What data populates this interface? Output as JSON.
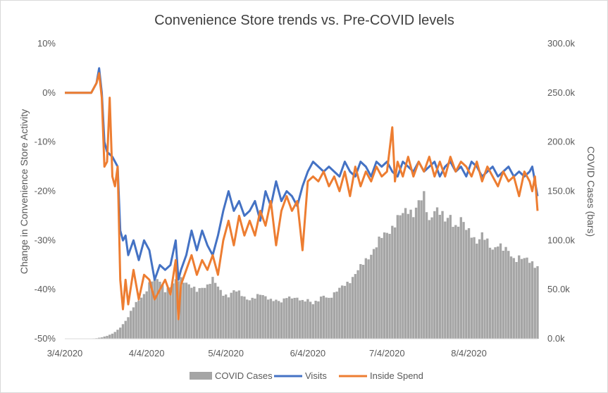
{
  "chart_data": {
    "type": "bar+line",
    "title": "Convenience  Store trends vs. Pre-COVID levels",
    "ylabel_left": "Change in Convenience Store Activity",
    "ylabel_right": "COVID Cases (bars)",
    "left_axis": {
      "ticks": [
        10,
        0,
        -10,
        -20,
        -30,
        -40,
        -50
      ],
      "tick_labels": [
        "10%",
        "0%",
        "-10%",
        "-20%",
        "-30%",
        "-40%",
        "-50%"
      ],
      "ylim": [
        -50,
        10
      ]
    },
    "right_axis": {
      "ticks": [
        300000,
        250000,
        200000,
        150000,
        100000,
        50000,
        0
      ],
      "tick_labels": [
        "300.0k",
        "250.0k",
        "200.0k",
        "150.0k",
        "100.0k",
        "50.0k",
        "0.0k"
      ],
      "ylim": [
        0,
        300000
      ]
    },
    "x_axis": {
      "start_date": "3/4/2020",
      "end_date": "8/31/2020",
      "tick_labels": [
        "3/4/2020",
        "4/4/2020",
        "5/4/2020",
        "6/4/2020",
        "7/4/2020",
        "8/4/2020"
      ]
    },
    "legend": {
      "position": "bottom",
      "entries": [
        "COVID Cases",
        "Visits",
        "Inside Spend"
      ]
    },
    "colors": {
      "cases": "#a5a5a5",
      "visits": "#4472c4",
      "spend": "#ed7d31",
      "axis": "#d9d9d9"
    },
    "series": [
      {
        "name": "COVID Cases",
        "kind": "bar",
        "axis": "right",
        "points": [
          [
            0,
            0
          ],
          [
            10,
            200
          ],
          [
            12,
            600
          ],
          [
            14,
            1500
          ],
          [
            16,
            3000
          ],
          [
            18,
            5000
          ],
          [
            20,
            9000
          ],
          [
            22,
            15000
          ],
          [
            24,
            22000
          ],
          [
            26,
            32000
          ],
          [
            28,
            40000
          ],
          [
            30,
            46000
          ],
          [
            31,
            50000
          ],
          [
            32,
            55000
          ],
          [
            33,
            58000
          ],
          [
            34,
            60000
          ],
          [
            36,
            60000
          ],
          [
            38,
            50000
          ],
          [
            40,
            52000
          ],
          [
            42,
            58000
          ],
          [
            44,
            62000
          ],
          [
            46,
            58000
          ],
          [
            48,
            52000
          ],
          [
            50,
            48000
          ],
          [
            52,
            53000
          ],
          [
            54,
            55000
          ],
          [
            56,
            60000
          ],
          [
            58,
            52000
          ],
          [
            60,
            46000
          ],
          [
            62,
            44000
          ],
          [
            64,
            48000
          ],
          [
            66,
            47000
          ],
          [
            68,
            43000
          ],
          [
            70,
            40000
          ],
          [
            72,
            41000
          ],
          [
            74,
            45000
          ],
          [
            76,
            44000
          ],
          [
            78,
            40000
          ],
          [
            80,
            38000
          ],
          [
            82,
            37000
          ],
          [
            84,
            44000
          ],
          [
            86,
            42000
          ],
          [
            88,
            40000
          ],
          [
            90,
            38000
          ],
          [
            92,
            41000
          ],
          [
            94,
            36000
          ],
          [
            96,
            38000
          ],
          [
            98,
            44000
          ],
          [
            100,
            42000
          ],
          [
            102,
            46000
          ],
          [
            104,
            50000
          ],
          [
            106,
            55000
          ],
          [
            108,
            60000
          ],
          [
            110,
            66000
          ],
          [
            112,
            72000
          ],
          [
            114,
            80000
          ],
          [
            116,
            88000
          ],
          [
            118,
            95000
          ],
          [
            120,
            102000
          ],
          [
            122,
            108000
          ],
          [
            124,
            115000
          ],
          [
            126,
            122000
          ],
          [
            128,
            125000
          ],
          [
            130,
            132000
          ],
          [
            132,
            130000
          ],
          [
            134,
            138000
          ],
          [
            136,
            142000
          ],
          [
            138,
            120000
          ],
          [
            140,
            135000
          ],
          [
            142,
            128000
          ],
          [
            144,
            118000
          ],
          [
            146,
            126000
          ],
          [
            148,
            115000
          ],
          [
            150,
            120000
          ],
          [
            152,
            110000
          ],
          [
            154,
            108000
          ],
          [
            156,
            100000
          ],
          [
            158,
            104000
          ],
          [
            160,
            97000
          ],
          [
            162,
            92000
          ],
          [
            164,
            98000
          ],
          [
            166,
            90000
          ],
          [
            168,
            88000
          ],
          [
            170,
            82000
          ],
          [
            172,
            84000
          ],
          [
            174,
            80000
          ],
          [
            176,
            78000
          ],
          [
            178,
            76000
          ],
          [
            179,
            75000
          ]
        ]
      },
      {
        "name": "Visits",
        "kind": "line",
        "axis": "left",
        "points": [
          [
            0,
            0
          ],
          [
            10,
            0
          ],
          [
            12,
            2
          ],
          [
            13,
            5
          ],
          [
            14,
            0
          ],
          [
            15,
            -10
          ],
          [
            16,
            -12
          ],
          [
            18,
            -13
          ],
          [
            20,
            -15
          ],
          [
            21,
            -28
          ],
          [
            22,
            -30
          ],
          [
            23,
            -29
          ],
          [
            24,
            -33
          ],
          [
            26,
            -30
          ],
          [
            28,
            -34
          ],
          [
            30,
            -30
          ],
          [
            32,
            -32
          ],
          [
            34,
            -38
          ],
          [
            36,
            -35
          ],
          [
            38,
            -36
          ],
          [
            40,
            -35
          ],
          [
            42,
            -30
          ],
          [
            43,
            -38
          ],
          [
            44,
            -36
          ],
          [
            46,
            -33
          ],
          [
            48,
            -28
          ],
          [
            50,
            -32
          ],
          [
            52,
            -28
          ],
          [
            54,
            -31
          ],
          [
            56,
            -33
          ],
          [
            58,
            -29
          ],
          [
            60,
            -24
          ],
          [
            62,
            -20
          ],
          [
            64,
            -24
          ],
          [
            66,
            -22
          ],
          [
            68,
            -25
          ],
          [
            70,
            -24
          ],
          [
            72,
            -22
          ],
          [
            74,
            -26
          ],
          [
            76,
            -20
          ],
          [
            78,
            -23
          ],
          [
            80,
            -18
          ],
          [
            82,
            -22
          ],
          [
            84,
            -20
          ],
          [
            86,
            -21
          ],
          [
            88,
            -23
          ],
          [
            90,
            -19
          ],
          [
            92,
            -16
          ],
          [
            94,
            -14
          ],
          [
            96,
            -15
          ],
          [
            98,
            -16
          ],
          [
            100,
            -15
          ],
          [
            102,
            -16
          ],
          [
            104,
            -17
          ],
          [
            106,
            -14
          ],
          [
            108,
            -16
          ],
          [
            110,
            -17
          ],
          [
            112,
            -14
          ],
          [
            114,
            -15
          ],
          [
            116,
            -17
          ],
          [
            118,
            -14
          ],
          [
            120,
            -15
          ],
          [
            122,
            -14
          ],
          [
            124,
            -16
          ],
          [
            126,
            -17
          ],
          [
            128,
            -14
          ],
          [
            130,
            -15
          ],
          [
            132,
            -16
          ],
          [
            134,
            -14
          ],
          [
            136,
            -16
          ],
          [
            138,
            -15
          ],
          [
            140,
            -14
          ],
          [
            142,
            -17
          ],
          [
            144,
            -15
          ],
          [
            146,
            -14
          ],
          [
            148,
            -16
          ],
          [
            150,
            -15
          ],
          [
            152,
            -17
          ],
          [
            154,
            -14
          ],
          [
            156,
            -15
          ],
          [
            158,
            -17
          ],
          [
            160,
            -16
          ],
          [
            162,
            -15
          ],
          [
            164,
            -17
          ],
          [
            166,
            -16
          ],
          [
            168,
            -15
          ],
          [
            170,
            -17
          ],
          [
            172,
            -16
          ],
          [
            174,
            -17
          ],
          [
            176,
            -16
          ],
          [
            177,
            -15
          ],
          [
            178,
            -18
          ],
          [
            179,
            -21
          ]
        ]
      },
      {
        "name": "Inside Spend",
        "kind": "line",
        "axis": "left",
        "points": [
          [
            0,
            0
          ],
          [
            10,
            0
          ],
          [
            12,
            2
          ],
          [
            13,
            4
          ],
          [
            14,
            -1
          ],
          [
            15,
            -15
          ],
          [
            16,
            -14
          ],
          [
            17,
            -1
          ],
          [
            18,
            -17
          ],
          [
            19,
            -19
          ],
          [
            20,
            -15
          ],
          [
            21,
            -38
          ],
          [
            22,
            -44
          ],
          [
            23,
            -38
          ],
          [
            24,
            -43
          ],
          [
            26,
            -36
          ],
          [
            28,
            -42
          ],
          [
            30,
            -37
          ],
          [
            32,
            -38
          ],
          [
            34,
            -42
          ],
          [
            36,
            -40
          ],
          [
            38,
            -38
          ],
          [
            40,
            -41
          ],
          [
            42,
            -34
          ],
          [
            43,
            -46
          ],
          [
            44,
            -39
          ],
          [
            46,
            -36
          ],
          [
            48,
            -33
          ],
          [
            50,
            -37
          ],
          [
            52,
            -34
          ],
          [
            54,
            -36
          ],
          [
            56,
            -33
          ],
          [
            58,
            -37
          ],
          [
            60,
            -30
          ],
          [
            62,
            -26
          ],
          [
            64,
            -31
          ],
          [
            66,
            -25
          ],
          [
            68,
            -29
          ],
          [
            70,
            -26
          ],
          [
            72,
            -29
          ],
          [
            74,
            -24
          ],
          [
            76,
            -27
          ],
          [
            78,
            -22
          ],
          [
            80,
            -31
          ],
          [
            82,
            -24
          ],
          [
            84,
            -21
          ],
          [
            86,
            -24
          ],
          [
            88,
            -22
          ],
          [
            90,
            -32
          ],
          [
            92,
            -18
          ],
          [
            94,
            -17
          ],
          [
            96,
            -18
          ],
          [
            98,
            -16
          ],
          [
            100,
            -19
          ],
          [
            102,
            -17
          ],
          [
            104,
            -20
          ],
          [
            106,
            -16
          ],
          [
            108,
            -21
          ],
          [
            110,
            -15
          ],
          [
            112,
            -19
          ],
          [
            114,
            -16
          ],
          [
            116,
            -18
          ],
          [
            118,
            -15
          ],
          [
            120,
            -17
          ],
          [
            122,
            -16
          ],
          [
            124,
            -7
          ],
          [
            125,
            -18
          ],
          [
            126,
            -14
          ],
          [
            128,
            -17
          ],
          [
            130,
            -13
          ],
          [
            132,
            -17
          ],
          [
            134,
            -14
          ],
          [
            136,
            -16
          ],
          [
            138,
            -13
          ],
          [
            140,
            -17
          ],
          [
            142,
            -14
          ],
          [
            144,
            -17
          ],
          [
            146,
            -13
          ],
          [
            148,
            -16
          ],
          [
            150,
            -14
          ],
          [
            152,
            -15
          ],
          [
            154,
            -17
          ],
          [
            156,
            -14
          ],
          [
            158,
            -18
          ],
          [
            160,
            -15
          ],
          [
            162,
            -17
          ],
          [
            164,
            -19
          ],
          [
            166,
            -16
          ],
          [
            168,
            -18
          ],
          [
            170,
            -17
          ],
          [
            172,
            -21
          ],
          [
            174,
            -16
          ],
          [
            176,
            -18
          ],
          [
            177,
            -20
          ],
          [
            178,
            -17
          ],
          [
            179,
            -24
          ]
        ]
      }
    ]
  }
}
